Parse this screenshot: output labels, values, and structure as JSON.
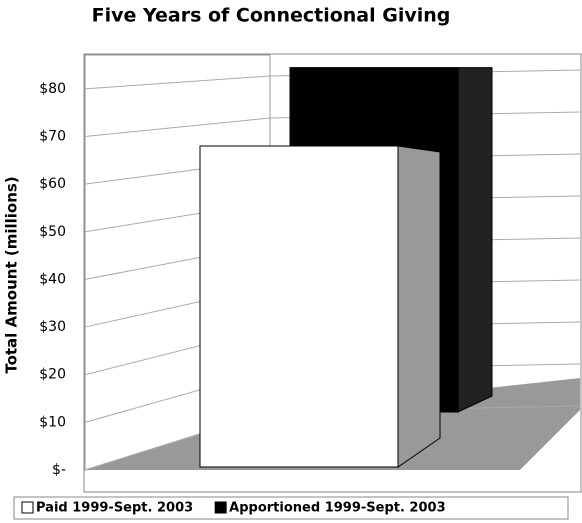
{
  "chart_data": {
    "type": "bar3d",
    "title": "Five Years of Connectional Giving",
    "y_label": "Total Amount (millions)",
    "series": [
      {
        "name": "Paid 1999-Sept. 2003",
        "color": "#ffffff",
        "values": [
          68
        ]
      },
      {
        "name": "Apportioned 1999-Sept. 2003",
        "color": "#000000",
        "values": [
          82
        ]
      }
    ],
    "ylim": [
      0,
      85
    ],
    "yticks": [
      {
        "value": 0,
        "label": "$-"
      },
      {
        "value": 10,
        "label": "$10"
      },
      {
        "value": 20,
        "label": "$20"
      },
      {
        "value": 30,
        "label": "$30"
      },
      {
        "value": 40,
        "label": "$40"
      },
      {
        "value": 50,
        "label": "$50"
      },
      {
        "value": 60,
        "label": "$60"
      },
      {
        "value": 70,
        "label": "$70"
      },
      {
        "value": 80,
        "label": "$80"
      }
    ],
    "grid": true,
    "legend": "bottom"
  }
}
